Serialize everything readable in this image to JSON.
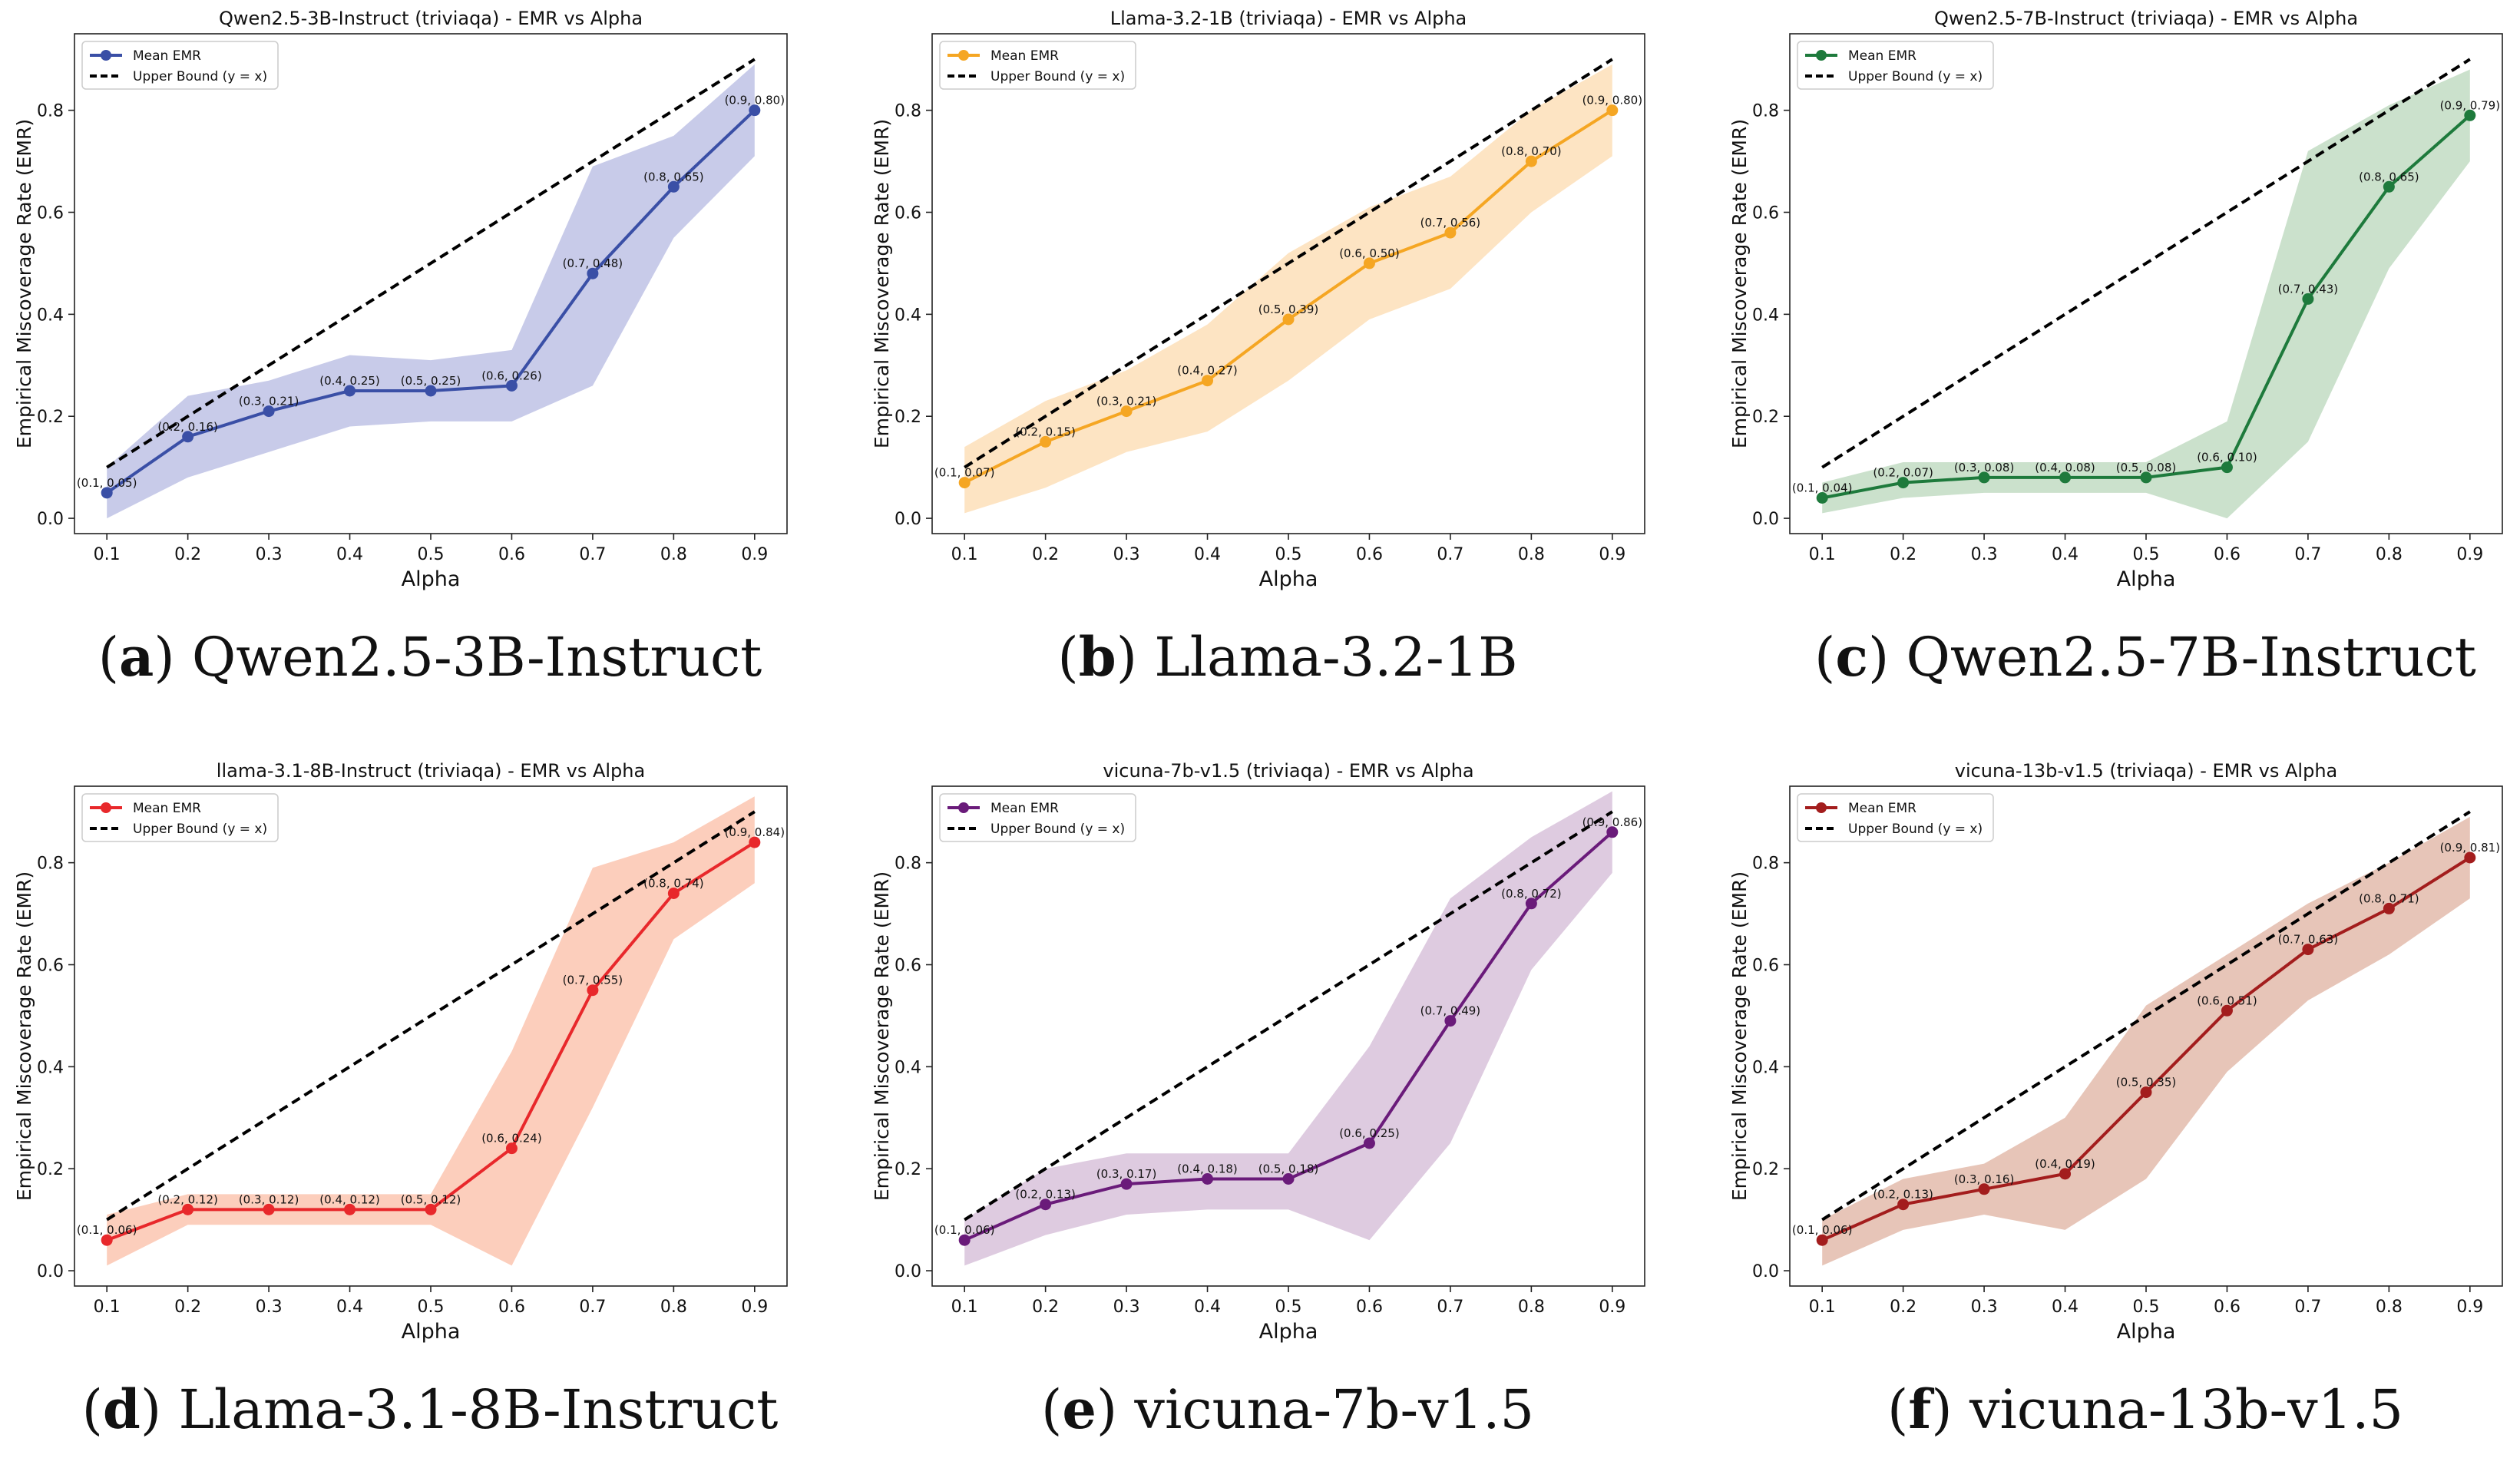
{
  "figure": {
    "captions": [
      {
        "letter": "a",
        "text": "Qwen2.5-3B-Instruct"
      },
      {
        "letter": "b",
        "text": "Llama-3.2-1B"
      },
      {
        "letter": "c",
        "text": "Qwen2.5-7B-Instruct"
      },
      {
        "letter": "d",
        "text": "Llama-3.1-8B-Instruct"
      },
      {
        "letter": "e",
        "text": "vicuna-7b-v1.5"
      },
      {
        "letter": "f",
        "text": "vicuna-13b-v1.5"
      }
    ]
  },
  "chart_data": [
    {
      "type": "line",
      "title": "Qwen2.5-3B-Instruct (triviaqa) - EMR vs Alpha",
      "xlabel": "Alpha",
      "ylabel": "Empirical Miscoverage Rate (EMR)",
      "x": [
        0.1,
        0.2,
        0.3,
        0.4,
        0.5,
        0.6,
        0.7,
        0.8,
        0.9
      ],
      "series": [
        {
          "name": "Mean EMR",
          "values": [
            0.05,
            0.16,
            0.21,
            0.25,
            0.25,
            0.26,
            0.48,
            0.65,
            0.8
          ],
          "color": "#3a4fa6",
          "band_color": "#c5c8e8"
        },
        {
          "name": "Upper Bound (y = x)",
          "values": [
            0.1,
            0.2,
            0.3,
            0.4,
            0.5,
            0.6,
            0.7,
            0.8,
            0.9
          ],
          "color": "#000000",
          "style": "dashed"
        }
      ],
      "band": {
        "lower": [
          0.0,
          0.08,
          0.13,
          0.18,
          0.19,
          0.19,
          0.26,
          0.55,
          0.71
        ],
        "upper": [
          0.1,
          0.24,
          0.27,
          0.32,
          0.31,
          0.33,
          0.69,
          0.75,
          0.89
        ]
      },
      "point_labels": [
        "(0.1, 0.05)",
        "(0.2, 0.16)",
        "(0.3, 0.21)",
        "(0.4, 0.25)",
        "(0.5, 0.25)",
        "(0.6, 0.26)",
        "(0.7, 0.48)",
        "(0.8, 0.65)",
        "(0.9, 0.80)"
      ],
      "xticks": [
        "0.1",
        "0.2",
        "0.3",
        "0.4",
        "0.5",
        "0.6",
        "0.7",
        "0.8",
        "0.9"
      ],
      "yticks": [
        "0.0",
        "0.2",
        "0.4",
        "0.6",
        "0.8"
      ],
      "xlim": [
        0.06,
        0.94
      ],
      "ylim": [
        -0.03,
        0.95
      ],
      "legend_position": "top-left"
    },
    {
      "type": "line",
      "title": "Llama-3.2-1B (triviaqa) - EMR vs Alpha",
      "xlabel": "Alpha",
      "ylabel": "Empirical Miscoverage Rate (EMR)",
      "x": [
        0.1,
        0.2,
        0.3,
        0.4,
        0.5,
        0.6,
        0.7,
        0.8,
        0.9
      ],
      "series": [
        {
          "name": "Mean EMR",
          "values": [
            0.07,
            0.15,
            0.21,
            0.27,
            0.39,
            0.5,
            0.56,
            0.7,
            0.8
          ],
          "color": "#f5a623",
          "band_color": "#fde3c0"
        },
        {
          "name": "Upper Bound (y = x)",
          "values": [
            0.1,
            0.2,
            0.3,
            0.4,
            0.5,
            0.6,
            0.7,
            0.8,
            0.9
          ],
          "color": "#000000",
          "style": "dashed"
        }
      ],
      "band": {
        "lower": [
          0.01,
          0.06,
          0.13,
          0.17,
          0.27,
          0.39,
          0.45,
          0.6,
          0.71
        ],
        "upper": [
          0.14,
          0.23,
          0.29,
          0.38,
          0.52,
          0.61,
          0.67,
          0.8,
          0.89
        ]
      },
      "point_labels": [
        "(0.1, 0.07)",
        "(0.2, 0.15)",
        "(0.3, 0.21)",
        "(0.4, 0.27)",
        "(0.5, 0.39)",
        "(0.6, 0.50)",
        "(0.7, 0.56)",
        "(0.8, 0.70)",
        "(0.9, 0.80)"
      ],
      "xticks": [
        "0.1",
        "0.2",
        "0.3",
        "0.4",
        "0.5",
        "0.6",
        "0.7",
        "0.8",
        "0.9"
      ],
      "yticks": [
        "0.0",
        "0.2",
        "0.4",
        "0.6",
        "0.8"
      ],
      "xlim": [
        0.06,
        0.94
      ],
      "ylim": [
        -0.03,
        0.95
      ],
      "legend_position": "top-left"
    },
    {
      "type": "line",
      "title": "Qwen2.5-7B-Instruct (triviaqa) - EMR vs Alpha",
      "xlabel": "Alpha",
      "ylabel": "Empirical Miscoverage Rate (EMR)",
      "x": [
        0.1,
        0.2,
        0.3,
        0.4,
        0.5,
        0.6,
        0.7,
        0.8,
        0.9
      ],
      "series": [
        {
          "name": "Mean EMR",
          "values": [
            0.04,
            0.07,
            0.08,
            0.08,
            0.08,
            0.1,
            0.43,
            0.65,
            0.79
          ],
          "color": "#1e7a3c",
          "band_color": "#c8dfc9"
        },
        {
          "name": "Upper Bound (y = x)",
          "values": [
            0.1,
            0.2,
            0.3,
            0.4,
            0.5,
            0.6,
            0.7,
            0.8,
            0.9
          ],
          "color": "#000000",
          "style": "dashed"
        }
      ],
      "band": {
        "lower": [
          0.01,
          0.04,
          0.05,
          0.05,
          0.05,
          0.0,
          0.15,
          0.49,
          0.7
        ],
        "upper": [
          0.07,
          0.11,
          0.11,
          0.11,
          0.11,
          0.19,
          0.72,
          0.81,
          0.88
        ]
      },
      "point_labels": [
        "(0.1, 0.04)",
        "(0.2, 0.07)",
        "(0.3, 0.08)",
        "(0.4, 0.08)",
        "(0.5, 0.08)",
        "(0.6, 0.10)",
        "(0.7, 0.43)",
        "(0.8, 0.65)",
        "(0.9, 0.79)"
      ],
      "xticks": [
        "0.1",
        "0.2",
        "0.3",
        "0.4",
        "0.5",
        "0.6",
        "0.7",
        "0.8",
        "0.9"
      ],
      "yticks": [
        "0.0",
        "0.2",
        "0.4",
        "0.6",
        "0.8"
      ],
      "xlim": [
        0.06,
        0.94
      ],
      "ylim": [
        -0.03,
        0.95
      ],
      "legend_position": "top-left"
    },
    {
      "type": "line",
      "title": "llama-3.1-8B-Instruct (triviaqa) - EMR vs Alpha",
      "xlabel": "Alpha",
      "ylabel": "Empirical Miscoverage Rate (EMR)",
      "x": [
        0.1,
        0.2,
        0.3,
        0.4,
        0.5,
        0.6,
        0.7,
        0.8,
        0.9
      ],
      "series": [
        {
          "name": "Mean EMR",
          "values": [
            0.06,
            0.12,
            0.12,
            0.12,
            0.12,
            0.24,
            0.55,
            0.74,
            0.84
          ],
          "color": "#e8282b",
          "band_color": "#fccbb8"
        },
        {
          "name": "Upper Bound (y = x)",
          "values": [
            0.1,
            0.2,
            0.3,
            0.4,
            0.5,
            0.6,
            0.7,
            0.8,
            0.9
          ],
          "color": "#000000",
          "style": "dashed"
        }
      ],
      "band": {
        "lower": [
          0.01,
          0.09,
          0.09,
          0.09,
          0.09,
          0.01,
          0.32,
          0.65,
          0.76
        ],
        "upper": [
          0.11,
          0.15,
          0.15,
          0.15,
          0.15,
          0.43,
          0.79,
          0.84,
          0.93
        ]
      },
      "point_labels": [
        "(0.1, 0.06)",
        "(0.2, 0.12)",
        "(0.3, 0.12)",
        "(0.4, 0.12)",
        "(0.5, 0.12)",
        "(0.6, 0.24)",
        "(0.7, 0.55)",
        "(0.8, 0.74)",
        "(0.9, 0.84)"
      ],
      "xticks": [
        "0.1",
        "0.2",
        "0.3",
        "0.4",
        "0.5",
        "0.6",
        "0.7",
        "0.8",
        "0.9"
      ],
      "yticks": [
        "0.0",
        "0.2",
        "0.4",
        "0.6",
        "0.8"
      ],
      "xlim": [
        0.06,
        0.94
      ],
      "ylim": [
        -0.03,
        0.95
      ],
      "legend_position": "top-left"
    },
    {
      "type": "line",
      "title": "vicuna-7b-v1.5 (triviaqa) - EMR vs Alpha",
      "xlabel": "Alpha",
      "ylabel": "Empirical Miscoverage Rate (EMR)",
      "x": [
        0.1,
        0.2,
        0.3,
        0.4,
        0.5,
        0.6,
        0.7,
        0.8,
        0.9
      ],
      "series": [
        {
          "name": "Mean EMR",
          "values": [
            0.06,
            0.13,
            0.17,
            0.18,
            0.18,
            0.25,
            0.49,
            0.72,
            0.86
          ],
          "color": "#6a1b7a",
          "band_color": "#dcc8de"
        },
        {
          "name": "Upper Bound (y = x)",
          "values": [
            0.1,
            0.2,
            0.3,
            0.4,
            0.5,
            0.6,
            0.7,
            0.8,
            0.9
          ],
          "color": "#000000",
          "style": "dashed"
        }
      ],
      "band": {
        "lower": [
          0.01,
          0.07,
          0.11,
          0.12,
          0.12,
          0.06,
          0.25,
          0.59,
          0.78
        ],
        "upper": [
          0.1,
          0.2,
          0.23,
          0.23,
          0.23,
          0.44,
          0.73,
          0.85,
          0.94
        ]
      },
      "point_labels": [
        "(0.1, 0.06)",
        "(0.2, 0.13)",
        "(0.3, 0.17)",
        "(0.4, 0.18)",
        "(0.5, 0.18)",
        "(0.6, 0.25)",
        "(0.7, 0.49)",
        "(0.8, 0.72)",
        "(0.9, 0.86)"
      ],
      "xticks": [
        "0.1",
        "0.2",
        "0.3",
        "0.4",
        "0.5",
        "0.6",
        "0.7",
        "0.8",
        "0.9"
      ],
      "yticks": [
        "0.0",
        "0.2",
        "0.4",
        "0.6",
        "0.8"
      ],
      "xlim": [
        0.06,
        0.94
      ],
      "ylim": [
        -0.03,
        0.95
      ],
      "legend_position": "top-left"
    },
    {
      "type": "line",
      "title": "vicuna-13b-v1.5 (triviaqa) - EMR vs Alpha",
      "xlabel": "Alpha",
      "ylabel": "Empirical Miscoverage Rate (EMR)",
      "x": [
        0.1,
        0.2,
        0.3,
        0.4,
        0.5,
        0.6,
        0.7,
        0.8,
        0.9
      ],
      "series": [
        {
          "name": "Mean EMR",
          "values": [
            0.06,
            0.13,
            0.16,
            0.19,
            0.35,
            0.51,
            0.63,
            0.71,
            0.81
          ],
          "color": "#a31d1d",
          "band_color": "#e6c2b4"
        },
        {
          "name": "Upper Bound (y = x)",
          "values": [
            0.1,
            0.2,
            0.3,
            0.4,
            0.5,
            0.6,
            0.7,
            0.8,
            0.9
          ],
          "color": "#000000",
          "style": "dashed"
        }
      ],
      "band": {
        "lower": [
          0.01,
          0.08,
          0.11,
          0.08,
          0.18,
          0.39,
          0.53,
          0.62,
          0.73
        ],
        "upper": [
          0.1,
          0.18,
          0.21,
          0.3,
          0.52,
          0.62,
          0.72,
          0.8,
          0.89
        ]
      },
      "point_labels": [
        "(0.1, 0.06)",
        "(0.2, 0.13)",
        "(0.3, 0.16)",
        "(0.4, 0.19)",
        "(0.5, 0.35)",
        "(0.6, 0.51)",
        "(0.7, 0.63)",
        "(0.8, 0.71)",
        "(0.9, 0.81)"
      ],
      "xticks": [
        "0.1",
        "0.2",
        "0.3",
        "0.4",
        "0.5",
        "0.6",
        "0.7",
        "0.8",
        "0.9"
      ],
      "yticks": [
        "0.0",
        "0.2",
        "0.4",
        "0.6",
        "0.8"
      ],
      "xlim": [
        0.06,
        0.94
      ],
      "ylim": [
        -0.03,
        0.95
      ],
      "legend_position": "top-left"
    }
  ]
}
